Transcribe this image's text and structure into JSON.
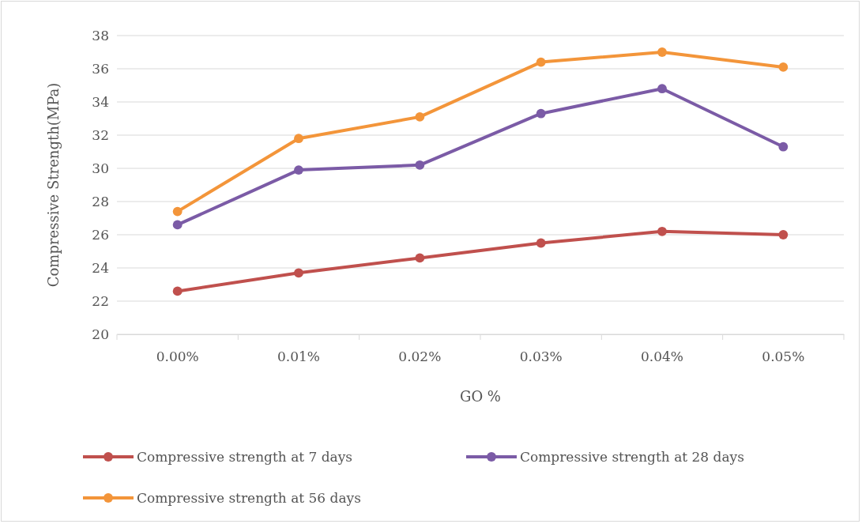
{
  "chart_data": {
    "type": "line",
    "xlabel": "GO %",
    "ylabel": "Compressive Strength(MPa)",
    "categories": [
      "0.00%",
      "0.01%",
      "0.02%",
      "0.03%",
      "0.04%",
      "0.05%"
    ],
    "series": [
      {
        "name": "Compressive strength at 7 days",
        "color": "#c0504d",
        "values": [
          22.6,
          23.7,
          24.6,
          25.5,
          26.2,
          26.0
        ]
      },
      {
        "name": "Compressive strength at 28 days",
        "color": "#7b5ba6",
        "values": [
          26.6,
          29.9,
          30.2,
          33.3,
          34.8,
          31.3
        ]
      },
      {
        "name": "Compressive strength at 56 days",
        "color": "#f3953a",
        "values": [
          27.4,
          31.8,
          33.1,
          36.4,
          37.0,
          36.1
        ]
      }
    ],
    "ylim": [
      20,
      38
    ],
    "yticks": [
      20,
      22,
      24,
      26,
      28,
      30,
      32,
      34,
      36,
      38
    ],
    "grid": "y",
    "legend": "bottom",
    "marker": "circle",
    "line_style": "solid"
  }
}
